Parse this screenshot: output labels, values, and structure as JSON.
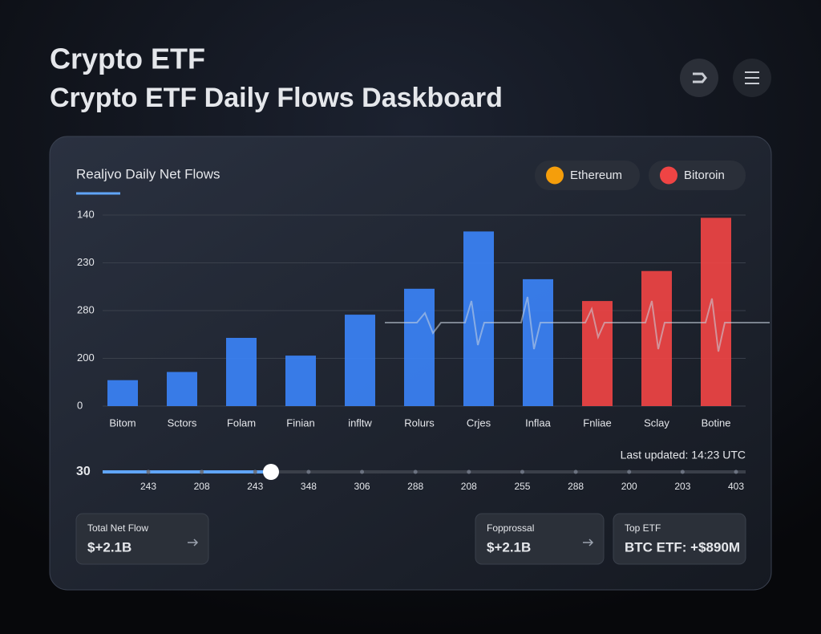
{
  "header": {
    "title": "Crypto ETF",
    "subtitle": "Crypto ETF Daily Flows Daskboard"
  },
  "chart_data": {
    "type": "bar",
    "title": "Realjvo Daily Net Flows",
    "categories": [
      "Bitom",
      "Sctors",
      "Folam",
      "Finian",
      "infltw",
      "Rolurs",
      "Crjes",
      "Inflaa",
      "Fnliae",
      "Sclay",
      "Botine"
    ],
    "series": [
      {
        "name": "Ethereum",
        "color": "#3b82f6",
        "values": [
          19,
          25,
          50,
          37,
          67,
          86,
          128,
          93,
          null,
          null,
          null
        ]
      },
      {
        "name": "Bitoroin",
        "color": "#ef4444",
        "values": [
          null,
          null,
          null,
          null,
          null,
          null,
          null,
          null,
          77,
          99,
          138
        ]
      }
    ],
    "ylim": [
      0,
      140
    ],
    "y_axis_labels": [
      "140",
      "230",
      "280",
      "200",
      "0"
    ],
    "grid": true
  },
  "slider": {
    "label": "30",
    "ticks": [
      "243",
      "208",
      "243",
      "348",
      "306",
      "288",
      "208",
      "255",
      "288",
      "200",
      "203",
      "403"
    ],
    "updated": "Last updated: 14:23 UTC"
  },
  "cards": [
    {
      "label": "Total Net Flow",
      "value": "$+2.1B"
    },
    {
      "label": "Fopprossal",
      "value": "$+2.1B"
    },
    {
      "label": "Top ETF",
      "value": "BTC ETF: +$890M"
    }
  ]
}
